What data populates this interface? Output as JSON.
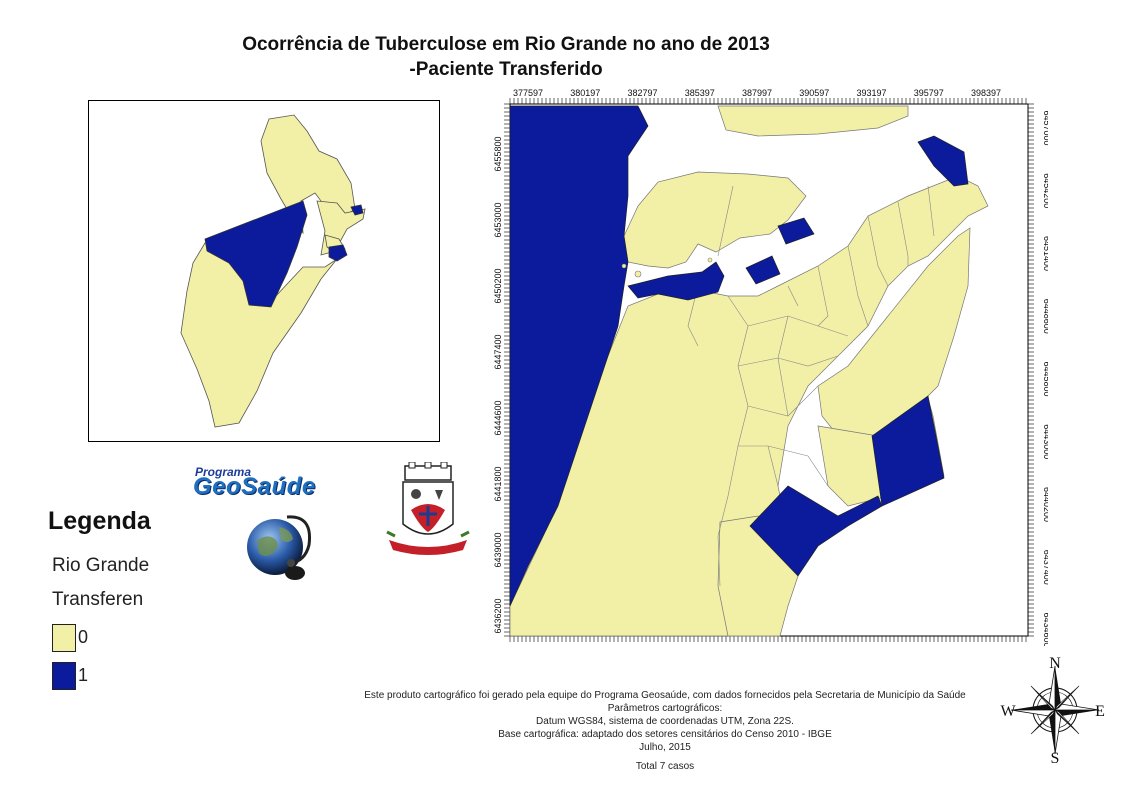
{
  "title": {
    "line1": "Ocorrência de Tuberculose em Rio Grande no ano de 2013",
    "line2": "-Paciente Transferido"
  },
  "legend": {
    "heading": "Legenda",
    "layer_name": "Rio Grande",
    "field_name": "Transferen",
    "classes": [
      {
        "label": "0",
        "color": "#f2efa6"
      },
      {
        "label": "1",
        "color": "#0b1b9c"
      }
    ]
  },
  "logo": {
    "program": "Programa",
    "name": "GeoSaúde"
  },
  "grid": {
    "x_labels": [
      "377597",
      "380197",
      "382797",
      "385397",
      "387997",
      "390597",
      "393197",
      "395797",
      "398397"
    ],
    "y_left_labels": [
      "6455800",
      "6453000",
      "6450200",
      "6447400",
      "6444600",
      "6441800",
      "6439000",
      "6436200"
    ],
    "y_right_labels": [
      "6457000",
      "6454200",
      "6451400",
      "6448600",
      "6445800",
      "6443000",
      "6440200",
      "6437400",
      "6434600"
    ]
  },
  "credits": {
    "line1": "Este produto cartográfico foi gerado pela equipe do Programa Geosaúde, com dados fornecidos pela Secretaria de Município da Saúde",
    "line2": "Parâmetros cartográficos:",
    "line3": "Datum WGS84, sistema de coordenadas UTM, Zona 22S.",
    "line4": "Base cartográfica: adaptado dos setores censitários do Censo 2010 - IBGE",
    "line5": "Julho, 2015",
    "total": "Total 7 casos"
  },
  "compass": {
    "n": "N",
    "s": "S",
    "e": "E",
    "w": "W"
  }
}
